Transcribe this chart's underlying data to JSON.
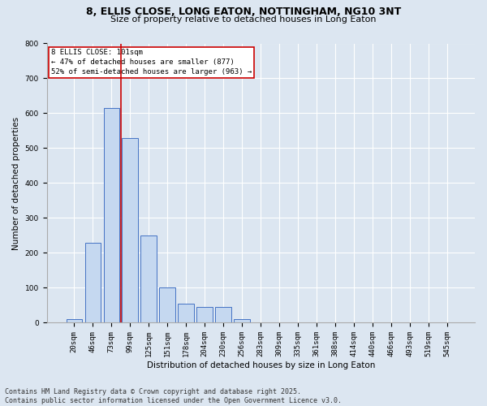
{
  "title_line1": "8, ELLIS CLOSE, LONG EATON, NOTTINGHAM, NG10 3NT",
  "title_line2": "Size of property relative to detached houses in Long Eaton",
  "xlabel": "Distribution of detached houses by size in Long Eaton",
  "ylabel": "Number of detached properties",
  "categories": [
    "20sqm",
    "46sqm",
    "73sqm",
    "99sqm",
    "125sqm",
    "151sqm",
    "178sqm",
    "204sqm",
    "230sqm",
    "256sqm",
    "283sqm",
    "309sqm",
    "335sqm",
    "361sqm",
    "388sqm",
    "414sqm",
    "440sqm",
    "466sqm",
    "493sqm",
    "519sqm",
    "545sqm"
  ],
  "values": [
    10,
    230,
    615,
    530,
    250,
    100,
    55,
    45,
    45,
    10,
    0,
    0,
    0,
    0,
    0,
    0,
    0,
    0,
    0,
    0,
    0
  ],
  "bar_color": "#c5d8f0",
  "bar_edge_color": "#4472c4",
  "reference_line_x": 3.0,
  "reference_line_color": "#cc0000",
  "annotation_text": "8 ELLIS CLOSE: 101sqm\n← 47% of detached houses are smaller (877)\n52% of semi-detached houses are larger (963) →",
  "annotation_box_color": "#ffffff",
  "annotation_box_edge_color": "#cc0000",
  "ylim": [
    0,
    800
  ],
  "yticks": [
    0,
    100,
    200,
    300,
    400,
    500,
    600,
    700,
    800
  ],
  "background_color": "#dce6f1",
  "plot_background_color": "#dce6f1",
  "footer_line1": "Contains HM Land Registry data © Crown copyright and database right 2025.",
  "footer_line2": "Contains public sector information licensed under the Open Government Licence v3.0.",
  "title_fontsize": 9,
  "subtitle_fontsize": 8,
  "tick_fontsize": 6.5,
  "label_fontsize": 7.5,
  "annotation_fontsize": 6.5,
  "footer_fontsize": 6
}
